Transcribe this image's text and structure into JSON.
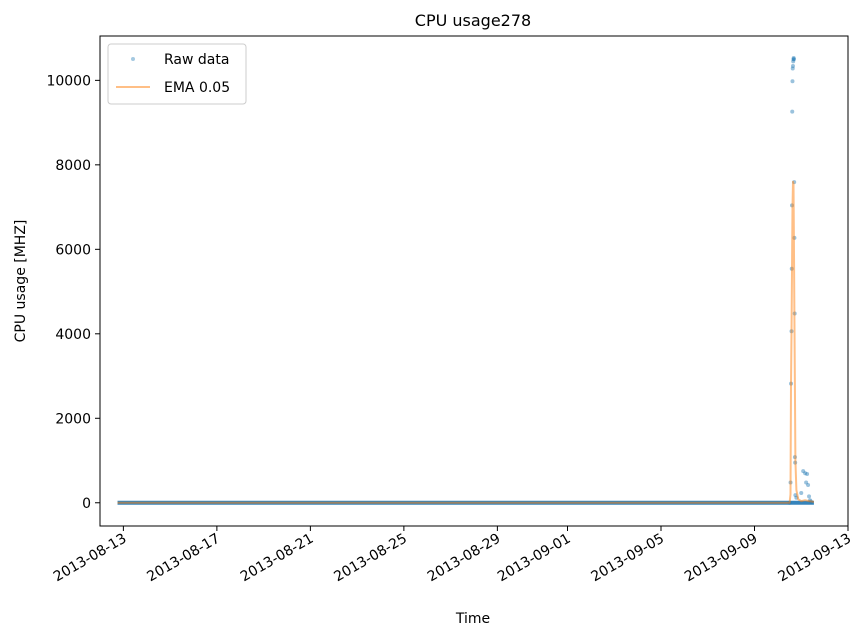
{
  "chart_data": {
    "type": "line",
    "title": "CPU usage278",
    "xlabel": "Time",
    "ylabel": "CPU usage [MHZ]",
    "x_ticks": [
      "2013-08-13",
      "2013-08-17",
      "2013-08-21",
      "2013-08-25",
      "2013-08-29",
      "2013-09-01",
      "2013-09-05",
      "2013-09-09",
      "2013-09-13"
    ],
    "y_ticks": [
      0,
      2000,
      4000,
      6000,
      8000,
      10000
    ],
    "xlim": [
      "2013-08-12T00:00",
      "2013-09-13T00:00"
    ],
    "ylim": [
      -550,
      11050
    ],
    "grid": false,
    "legend_position": "top-left",
    "series": [
      {
        "name": "Raw data",
        "style": "scatter",
        "color": "#1f77b4",
        "baseline": {
          "start": "2013-08-12T18:00",
          "end": "2013-09-11T13:00",
          "value": 0
        },
        "points": [
          {
            "x": "2013-09-10T12:00",
            "y": 0
          },
          {
            "x": "2013-09-10T13:00",
            "y": 480
          },
          {
            "x": "2013-09-10T13:30",
            "y": 2820
          },
          {
            "x": "2013-09-10T14:00",
            "y": 4060
          },
          {
            "x": "2013-09-10T14:15",
            "y": 5540
          },
          {
            "x": "2013-09-10T14:30",
            "y": 7040
          },
          {
            "x": "2013-09-10T14:45",
            "y": 9260
          },
          {
            "x": "2013-09-10T15:00",
            "y": 9980
          },
          {
            "x": "2013-09-10T15:15",
            "y": 10280
          },
          {
            "x": "2013-09-10T15:30",
            "y": 10340
          },
          {
            "x": "2013-09-10T15:45",
            "y": 10450
          },
          {
            "x": "2013-09-10T16:00",
            "y": 10500
          },
          {
            "x": "2013-09-10T16:15",
            "y": 10530
          },
          {
            "x": "2013-09-10T16:30",
            "y": 10500
          },
          {
            "x": "2013-09-10T16:45",
            "y": 7590
          },
          {
            "x": "2013-09-10T17:00",
            "y": 6270
          },
          {
            "x": "2013-09-10T17:15",
            "y": 4480
          },
          {
            "x": "2013-09-10T17:30",
            "y": 1080
          },
          {
            "x": "2013-09-10T17:45",
            "y": 950
          },
          {
            "x": "2013-09-10T18:00",
            "y": 180
          },
          {
            "x": "2013-09-10T19:00",
            "y": 120
          },
          {
            "x": "2013-09-11T00:00",
            "y": 230
          },
          {
            "x": "2013-09-11T02:00",
            "y": 750
          },
          {
            "x": "2013-09-11T04:00",
            "y": 700
          },
          {
            "x": "2013-09-11T05:00",
            "y": 480
          },
          {
            "x": "2013-09-11T06:00",
            "y": 680
          },
          {
            "x": "2013-09-11T07:00",
            "y": 420
          },
          {
            "x": "2013-09-11T08:00",
            "y": 150
          },
          {
            "x": "2013-09-11T09:00",
            "y": 60
          },
          {
            "x": "2013-09-11T10:00",
            "y": 30
          }
        ]
      },
      {
        "name": "EMA 0.05",
        "style": "line",
        "color": "#ff7f0e",
        "baseline": {
          "start": "2013-08-12T18:00",
          "end": "2013-09-10T12:00",
          "value": 0
        },
        "points": [
          {
            "x": "2013-09-10T12:00",
            "y": 0
          },
          {
            "x": "2013-09-10T13:00",
            "y": 200
          },
          {
            "x": "2013-09-10T13:30",
            "y": 2800
          },
          {
            "x": "2013-09-10T14:00",
            "y": 4000
          },
          {
            "x": "2013-09-10T14:30",
            "y": 5500
          },
          {
            "x": "2013-09-10T15:00",
            "y": 7000
          },
          {
            "x": "2013-09-10T15:30",
            "y": 7600
          },
          {
            "x": "2013-09-10T16:00",
            "y": 7550
          },
          {
            "x": "2013-09-10T16:30",
            "y": 6250
          },
          {
            "x": "2013-09-10T17:00",
            "y": 4450
          },
          {
            "x": "2013-09-10T17:30",
            "y": 2800
          },
          {
            "x": "2013-09-10T18:00",
            "y": 1000
          },
          {
            "x": "2013-09-10T19:00",
            "y": 300
          },
          {
            "x": "2013-09-10T21:00",
            "y": 80
          },
          {
            "x": "2013-09-11T00:00",
            "y": 40
          },
          {
            "x": "2013-09-11T04:00",
            "y": 60
          },
          {
            "x": "2013-09-11T08:00",
            "y": 40
          },
          {
            "x": "2013-09-11T13:00",
            "y": 20
          }
        ]
      }
    ]
  }
}
